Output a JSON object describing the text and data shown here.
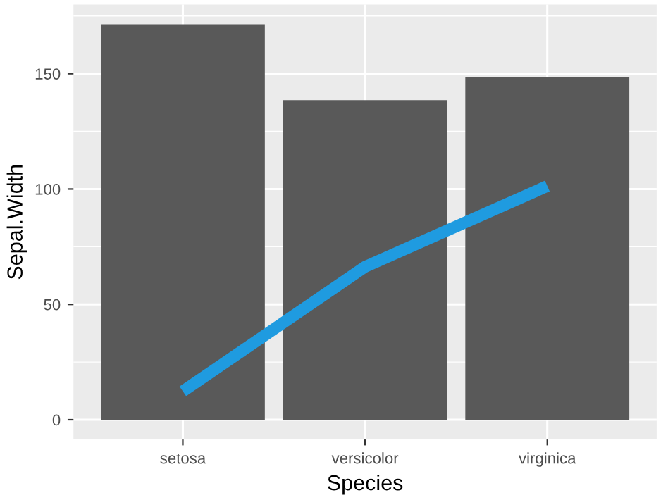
{
  "chart_data": {
    "type": "bar",
    "xlabel": "Species",
    "ylabel": "Sepal.Width",
    "categories": [
      "setosa",
      "versicolor",
      "virginica"
    ],
    "series": [
      {
        "color": "#595959",
        "values": [
          171.4,
          138.5,
          148.7
        ]
      },
      {
        "type": "line",
        "color": "#1f9be0",
        "values": [
          12.3,
          66.3,
          101.3
        ]
      }
    ],
    "ylim": [
      -8.57,
      180
    ],
    "yticks": [
      0,
      50,
      100,
      150
    ],
    "grid": true,
    "legend": false
  }
}
